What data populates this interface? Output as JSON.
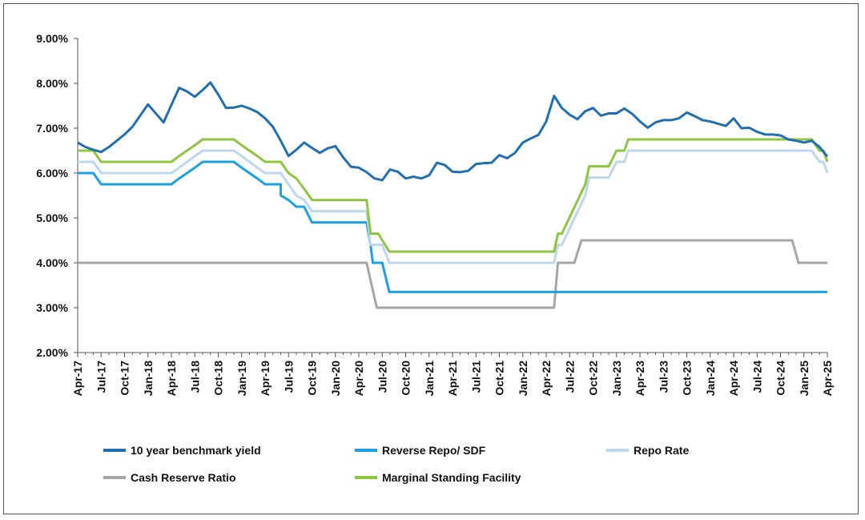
{
  "chart_data": {
    "type": "line",
    "title": "",
    "xlabel": "",
    "ylabel": "",
    "ylim": [
      2.0,
      9.0
    ],
    "y_ticks": [
      "2.00%",
      "3.00%",
      "4.00%",
      "5.00%",
      "6.00%",
      "7.00%",
      "8.00%",
      "9.00%"
    ],
    "x_tick_labels": [
      "Apr-17",
      "Jul-17",
      "Oct-17",
      "Jan-18",
      "Apr-18",
      "Jul-18",
      "Oct-18",
      "Jan-19",
      "Apr-19",
      "Jul-19",
      "Oct-19",
      "Jan-20",
      "Apr-20",
      "Jul-20",
      "Oct-20",
      "Jan-21",
      "Apr-21",
      "Jul-21",
      "Oct-21",
      "Jan-22",
      "Apr-22",
      "Jul-22",
      "Oct-22",
      "Jan-23",
      "Apr-23",
      "Jul-23",
      "Oct-23",
      "Jan-24",
      "Apr-24",
      "Jul-24",
      "Oct-24",
      "Jan-25",
      "Apr-25"
    ],
    "grid": false,
    "legend_position": "bottom",
    "series": [
      {
        "name": "10 year benchmark yield",
        "color": "#1f6fb2",
        "points": [
          [
            0,
            6.68
          ],
          [
            1,
            6.58
          ],
          [
            2,
            6.52
          ],
          [
            3,
            6.47
          ],
          [
            4,
            6.58
          ],
          [
            5,
            6.72
          ],
          [
            6,
            6.86
          ],
          [
            7,
            7.03
          ],
          [
            8,
            7.28
          ],
          [
            9,
            7.53
          ],
          [
            10,
            7.33
          ],
          [
            11,
            7.13
          ],
          [
            12,
            7.52
          ],
          [
            13,
            7.9
          ],
          [
            14,
            7.82
          ],
          [
            15,
            7.7
          ],
          [
            16,
            7.85
          ],
          [
            17,
            8.02
          ],
          [
            18,
            7.75
          ],
          [
            19,
            7.45
          ],
          [
            20,
            7.46
          ],
          [
            21,
            7.5
          ],
          [
            22,
            7.44
          ],
          [
            23,
            7.36
          ],
          [
            24,
            7.22
          ],
          [
            25,
            7.03
          ],
          [
            26,
            6.72
          ],
          [
            27,
            6.38
          ],
          [
            28,
            6.52
          ],
          [
            29,
            6.68
          ],
          [
            30,
            6.56
          ],
          [
            31,
            6.45
          ],
          [
            32,
            6.55
          ],
          [
            33,
            6.6
          ],
          [
            34,
            6.35
          ],
          [
            35,
            6.14
          ],
          [
            36,
            6.12
          ],
          [
            37,
            6.02
          ],
          [
            38,
            5.88
          ],
          [
            39,
            5.84
          ],
          [
            40,
            6.08
          ],
          [
            41,
            6.03
          ],
          [
            42,
            5.88
          ],
          [
            43,
            5.92
          ],
          [
            44,
            5.88
          ],
          [
            45,
            5.95
          ],
          [
            46,
            6.23
          ],
          [
            47,
            6.18
          ],
          [
            48,
            6.03
          ],
          [
            49,
            6.02
          ],
          [
            50,
            6.05
          ],
          [
            51,
            6.2
          ],
          [
            52,
            6.22
          ],
          [
            53,
            6.23
          ],
          [
            54,
            6.4
          ],
          [
            55,
            6.33
          ],
          [
            56,
            6.45
          ],
          [
            57,
            6.68
          ],
          [
            58,
            6.77
          ],
          [
            59,
            6.85
          ],
          [
            60,
            7.15
          ],
          [
            61,
            7.72
          ],
          [
            62,
            7.45
          ],
          [
            63,
            7.3
          ],
          [
            64,
            7.2
          ],
          [
            65,
            7.38
          ],
          [
            66,
            7.45
          ],
          [
            67,
            7.28
          ],
          [
            68,
            7.33
          ],
          [
            69,
            7.33
          ],
          [
            70,
            7.44
          ],
          [
            71,
            7.32
          ],
          [
            72,
            7.15
          ],
          [
            73,
            7.01
          ],
          [
            74,
            7.13
          ],
          [
            75,
            7.18
          ],
          [
            76,
            7.18
          ],
          [
            77,
            7.22
          ],
          [
            78,
            7.35
          ],
          [
            79,
            7.27
          ],
          [
            80,
            7.18
          ],
          [
            81,
            7.15
          ],
          [
            82,
            7.1
          ],
          [
            83,
            7.05
          ],
          [
            84,
            7.22
          ],
          [
            85,
            7.0
          ],
          [
            86,
            7.01
          ],
          [
            87,
            6.92
          ],
          [
            88,
            6.86
          ],
          [
            89,
            6.86
          ],
          [
            90,
            6.84
          ],
          [
            91,
            6.75
          ],
          [
            92,
            6.72
          ],
          [
            93,
            6.68
          ],
          [
            94,
            6.72
          ],
          [
            95,
            6.58
          ],
          [
            96,
            6.37
          ]
        ]
      },
      {
        "name": "Reverse Repo/ SDF",
        "color": "#1ba1e2",
        "points": [
          [
            0,
            6.0
          ],
          [
            1,
            6.0
          ],
          [
            2,
            6.0
          ],
          [
            3,
            5.75
          ],
          [
            12,
            5.75
          ],
          [
            13,
            5.88
          ],
          [
            14,
            6.0
          ],
          [
            15,
            6.12
          ],
          [
            16,
            6.25
          ],
          [
            20,
            6.25
          ],
          [
            21,
            6.12
          ],
          [
            22,
            6.0
          ],
          [
            23,
            5.88
          ],
          [
            24,
            5.75
          ],
          [
            26,
            5.75
          ],
          [
            26.01,
            5.5
          ],
          [
            27,
            5.4
          ],
          [
            28,
            5.25
          ],
          [
            29,
            5.25
          ],
          [
            30,
            4.9
          ],
          [
            37,
            4.9
          ],
          [
            37.5,
            4.4
          ],
          [
            37.8,
            4.0
          ],
          [
            39,
            4.0
          ],
          [
            39.9,
            3.35
          ],
          [
            96,
            3.35
          ]
        ]
      },
      {
        "name": "Repo Rate",
        "color": "#bdd7ee",
        "points": [
          [
            0,
            6.25
          ],
          [
            1,
            6.25
          ],
          [
            2,
            6.25
          ],
          [
            3,
            6.0
          ],
          [
            12,
            6.0
          ],
          [
            13,
            6.12
          ],
          [
            14,
            6.25
          ],
          [
            15,
            6.38
          ],
          [
            16,
            6.5
          ],
          [
            20,
            6.5
          ],
          [
            21,
            6.38
          ],
          [
            22,
            6.25
          ],
          [
            23,
            6.12
          ],
          [
            24,
            6.0
          ],
          [
            26,
            6.0
          ],
          [
            27,
            5.75
          ],
          [
            28,
            5.5
          ],
          [
            29,
            5.4
          ],
          [
            30,
            5.15
          ],
          [
            37,
            5.15
          ],
          [
            37.5,
            4.4
          ],
          [
            39,
            4.4
          ],
          [
            39.9,
            4.0
          ],
          [
            60,
            4.0
          ],
          [
            61,
            4.0
          ],
          [
            61.5,
            4.4
          ],
          [
            62,
            4.4
          ],
          [
            65,
            5.5
          ],
          [
            65.5,
            5.9
          ],
          [
            68,
            5.9
          ],
          [
            69,
            6.25
          ],
          [
            70,
            6.25
          ],
          [
            70.5,
            6.5
          ],
          [
            94,
            6.5
          ],
          [
            95,
            6.25
          ],
          [
            95.5,
            6.25
          ],
          [
            96,
            6.0
          ]
        ]
      },
      {
        "name": "Cash Reserve Ratio",
        "color": "#a6a6a6",
        "points": [
          [
            0,
            4.0
          ],
          [
            37,
            4.0
          ],
          [
            38.3,
            3.0
          ],
          [
            61,
            3.0
          ],
          [
            61.5,
            4.0
          ],
          [
            63.6,
            4.0
          ],
          [
            64.5,
            4.5
          ],
          [
            91.5,
            4.5
          ],
          [
            92.3,
            4.0
          ],
          [
            96,
            4.0
          ]
        ]
      },
      {
        "name": "Marginal Standing Facility",
        "color": "#8dc63f",
        "points": [
          [
            0,
            6.5
          ],
          [
            1,
            6.5
          ],
          [
            2,
            6.5
          ],
          [
            3,
            6.25
          ],
          [
            12,
            6.25
          ],
          [
            13,
            6.38
          ],
          [
            14,
            6.5
          ],
          [
            15,
            6.62
          ],
          [
            16,
            6.75
          ],
          [
            20,
            6.75
          ],
          [
            21,
            6.62
          ],
          [
            22,
            6.5
          ],
          [
            23,
            6.38
          ],
          [
            24,
            6.25
          ],
          [
            26,
            6.25
          ],
          [
            27,
            6.0
          ],
          [
            28,
            5.88
          ],
          [
            29,
            5.65
          ],
          [
            30,
            5.4
          ],
          [
            37,
            5.4
          ],
          [
            37.5,
            4.65
          ],
          [
            38.5,
            4.65
          ],
          [
            39.9,
            4.25
          ],
          [
            60,
            4.25
          ],
          [
            61,
            4.25
          ],
          [
            61.5,
            4.65
          ],
          [
            62,
            4.65
          ],
          [
            65,
            5.75
          ],
          [
            65.5,
            6.15
          ],
          [
            68,
            6.15
          ],
          [
            69,
            6.5
          ],
          [
            70,
            6.5
          ],
          [
            70.5,
            6.75
          ],
          [
            94,
            6.75
          ],
          [
            95,
            6.5
          ],
          [
            95.5,
            6.5
          ],
          [
            96,
            6.25
          ]
        ]
      }
    ]
  }
}
